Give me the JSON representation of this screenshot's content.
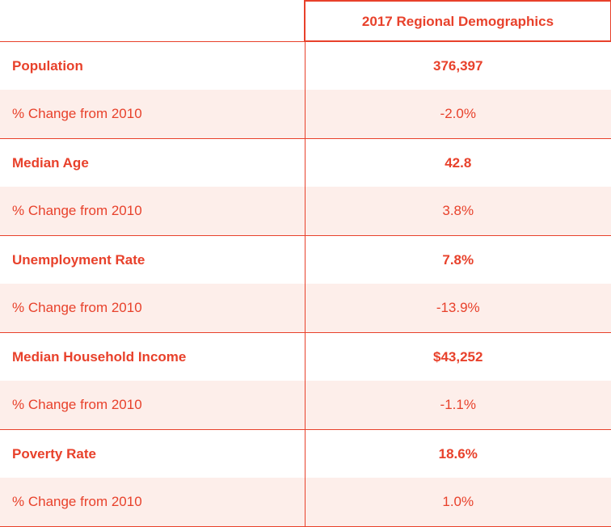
{
  "table": {
    "header": {
      "corner": "",
      "title": "2017 Regional Demographics"
    },
    "rows": [
      {
        "label": "Population",
        "value": "376,397",
        "type": "main"
      },
      {
        "label": "% Change from 2010",
        "value": "-2.0%",
        "type": "sub"
      },
      {
        "label": "Median Age",
        "value": "42.8",
        "type": "main"
      },
      {
        "label": "% Change from 2010",
        "value": "3.8%",
        "type": "sub"
      },
      {
        "label": "Unemployment Rate",
        "value": "7.8%",
        "type": "main"
      },
      {
        "label": "% Change from 2010",
        "value": "-13.9%",
        "type": "sub"
      },
      {
        "label": "Median Household Income",
        "value": "$43,252",
        "type": "main"
      },
      {
        "label": "% Change from 2010",
        "value": "-1.1%",
        "type": "sub"
      },
      {
        "label": "Poverty Rate",
        "value": "18.6%",
        "type": "main"
      },
      {
        "label": "% Change from 2010",
        "value": "1.0%",
        "type": "sub"
      }
    ]
  },
  "colors": {
    "accent": "#e8412b",
    "sub_row_background": "#fdeeea",
    "background": "#ffffff"
  }
}
